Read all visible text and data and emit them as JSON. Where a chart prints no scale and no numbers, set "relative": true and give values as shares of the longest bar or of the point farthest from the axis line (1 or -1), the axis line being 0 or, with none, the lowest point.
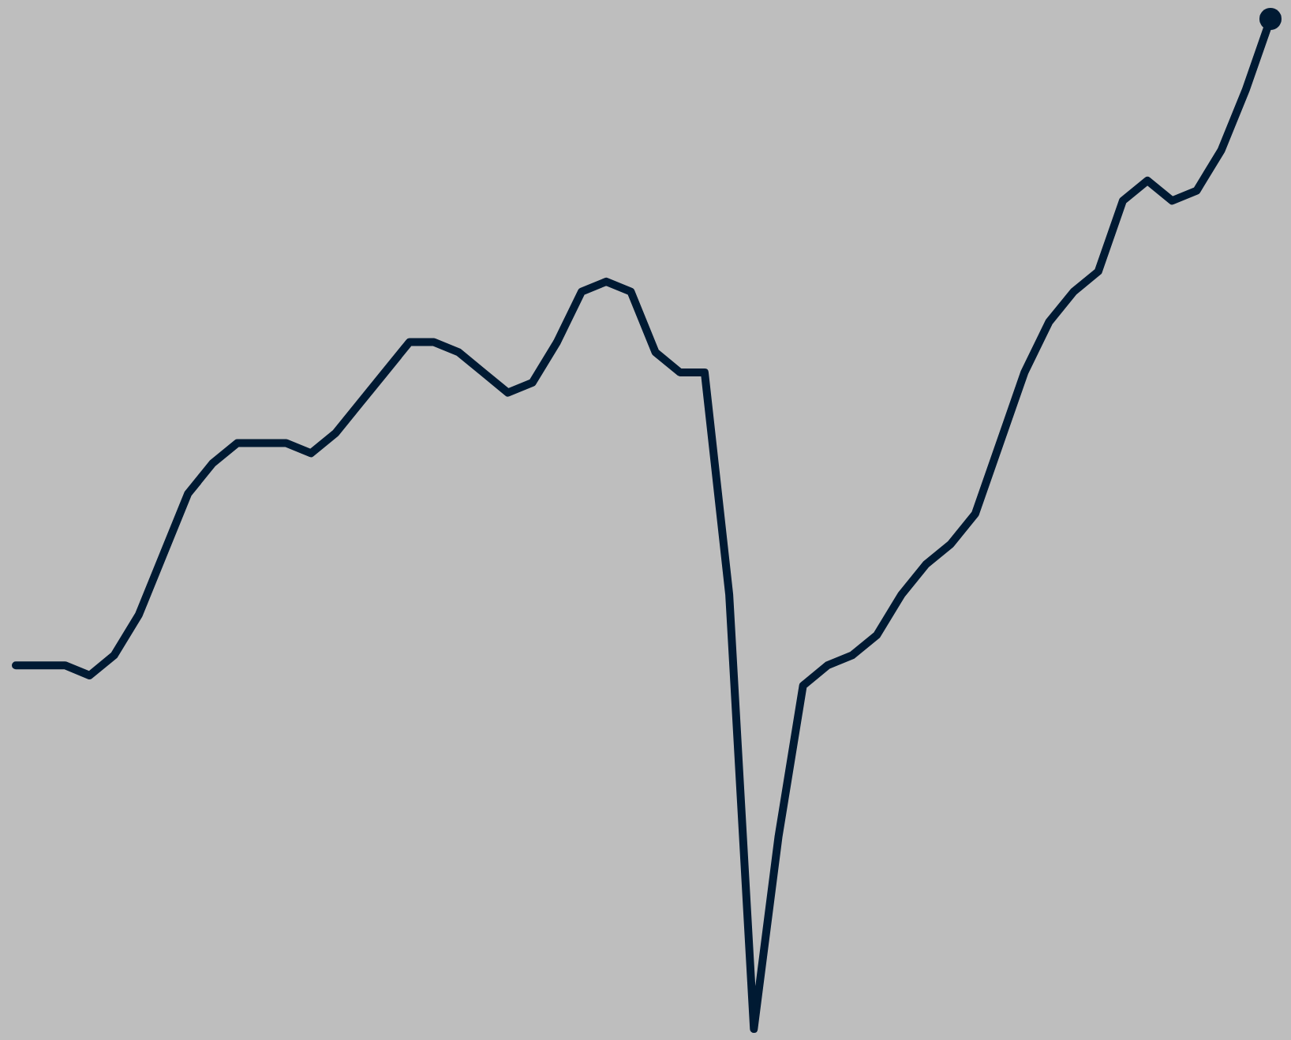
{
  "chart_data": {
    "type": "line",
    "relative": true,
    "marker": "none",
    "categories": [
      null,
      null,
      null,
      null,
      null,
      null,
      null,
      null,
      null,
      null,
      null,
      null,
      null,
      null,
      null,
      null,
      null,
      null,
      null,
      null,
      null,
      null,
      null,
      null,
      null,
      null,
      null,
      null,
      null,
      null,
      null,
      null,
      null,
      null,
      null,
      null,
      null,
      null,
      null,
      null,
      null,
      null,
      null,
      null,
      null,
      null,
      null,
      null,
      null,
      null,
      null,
      null
    ],
    "series": [
      {
        "color": "#001a33",
        "values": [
          0.36,
          0.36,
          0.36,
          0.35,
          0.37,
          0.41,
          0.47,
          0.53,
          0.56,
          0.58,
          0.58,
          0.58,
          0.57,
          0.59,
          0.62,
          0.65,
          0.68,
          0.68,
          0.67,
          0.65,
          0.63,
          0.64,
          0.68,
          0.73,
          0.74,
          0.73,
          0.67,
          0.65,
          0.65,
          0.43,
          0,
          0.19,
          0.34,
          0.36,
          0.37,
          0.39,
          0.43,
          0.46,
          0.48,
          0.51,
          0.58,
          0.65,
          0.7,
          0.73,
          0.75,
          0.82,
          0.84,
          0.82,
          0.83,
          0.87,
          0.93,
          1
        ]
      }
    ]
  }
}
